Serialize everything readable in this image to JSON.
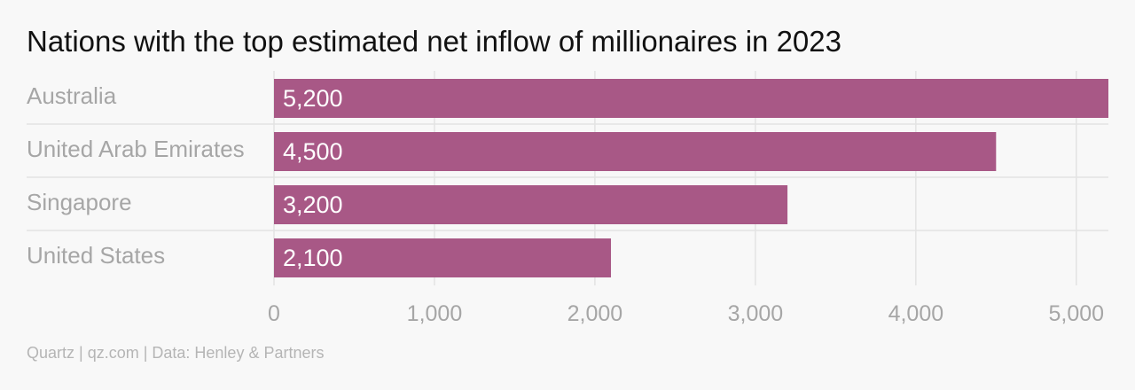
{
  "title": "Nations with the top estimated net inflow of millionaires in 2023",
  "source": "Quartz | qz.com | Data: Henley & Partners",
  "colors": {
    "bar": "#a85886",
    "grid": "#e3e3e3",
    "label": "#a6a6a6"
  },
  "chart_data": {
    "type": "bar",
    "orientation": "horizontal",
    "title": "Nations with the top estimated net inflow of millionaires in 2023",
    "categories": [
      "Australia",
      "United Arab Emirates",
      "Singapore",
      "United States"
    ],
    "values": [
      5200,
      4500,
      3200,
      2100
    ],
    "value_labels": [
      "5,200",
      "4,500",
      "3,200",
      "2,100"
    ],
    "xlim": [
      0,
      5200
    ],
    "xticks": [
      0,
      1000,
      2000,
      3000,
      4000,
      5000
    ],
    "xtick_labels": [
      "0",
      "1,000",
      "2,000",
      "3,000",
      "4,000",
      "5,000"
    ],
    "xlabel": "",
    "ylabel": "",
    "grid": true,
    "legend": "none"
  }
}
